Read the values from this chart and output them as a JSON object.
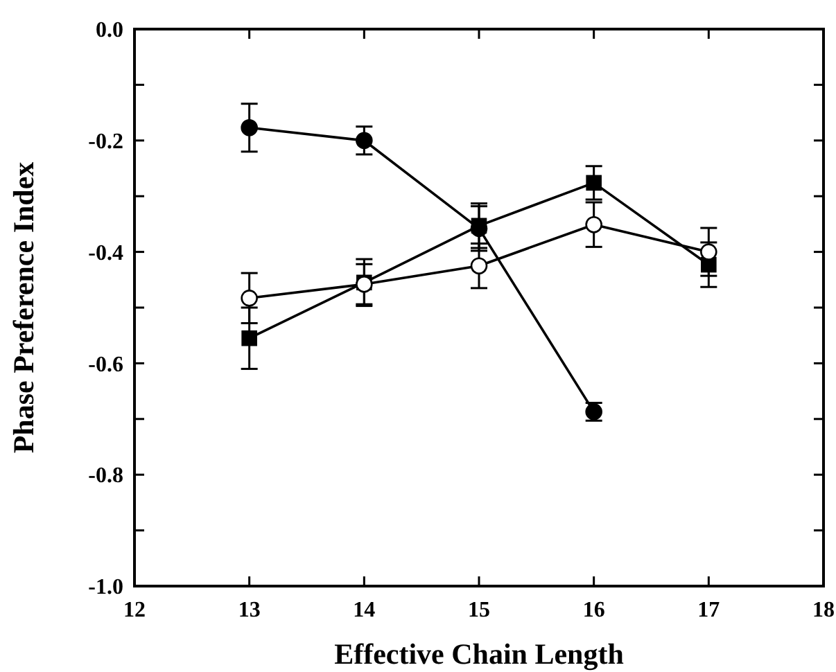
{
  "chart_data": {
    "type": "line",
    "xlabel": "Effective Chain Length",
    "ylabel": "Phase Preference Index",
    "xlim": [
      12,
      18
    ],
    "xticks": [
      12,
      13,
      14,
      15,
      16,
      17,
      18
    ],
    "ylim": [
      -1.0,
      0.0
    ],
    "yticks": [
      {
        "value": -1.0,
        "label": "-1.0"
      },
      {
        "value": -0.9,
        "label": null
      },
      {
        "value": -0.8,
        "label": "-0.8"
      },
      {
        "value": -0.7,
        "label": null
      },
      {
        "value": -0.6,
        "label": "-0.6"
      },
      {
        "value": -0.5,
        "label": null
      },
      {
        "value": -0.4,
        "label": "-0.4"
      },
      {
        "value": -0.3,
        "label": null
      },
      {
        "value": -0.2,
        "label": "-0.2"
      },
      {
        "value": -0.1,
        "label": null
      },
      {
        "value": 0.0,
        "label": "0.0"
      }
    ],
    "grid": false,
    "line_style": "solid",
    "x": [
      13,
      14,
      15,
      16,
      17
    ],
    "series": [
      {
        "color": "#000000",
        "marker": "circle",
        "x": [
          13,
          14,
          15,
          16
        ],
        "values": [
          -0.177,
          -0.2,
          -0.358,
          -0.687
        ],
        "errors": [
          0.043,
          0.025,
          0.04,
          0.016
        ]
      },
      {
        "color": "#000000",
        "marker": "square",
        "values": [
          -0.555,
          -0.455,
          -0.353,
          -0.276,
          -0.423
        ],
        "errors": [
          0.055,
          0.042,
          0.04,
          0.03,
          0.04
        ]
      },
      {
        "color": "#000000",
        "marker": "circle",
        "colors": [
          "#ffffff",
          "#ffffff",
          "#ffffff",
          "#ffffff",
          "#ffffff"
        ],
        "values": [
          -0.483,
          -0.458,
          -0.425,
          -0.351,
          -0.4
        ],
        "errors": [
          0.045,
          0.036,
          0.04,
          0.04,
          0.043
        ]
      }
    ]
  }
}
